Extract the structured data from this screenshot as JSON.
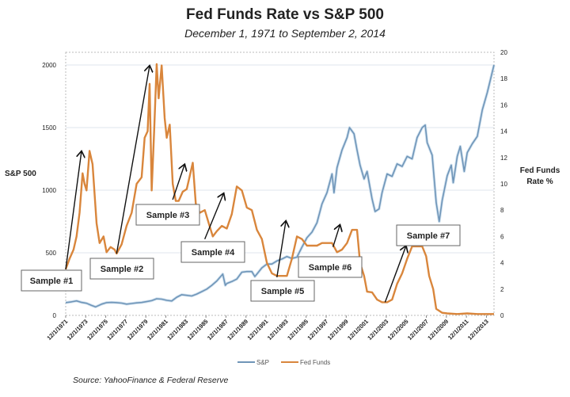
{
  "chart_data": {
    "type": "line",
    "title": "Fed Funds Rate vs S&P 500",
    "subtitle": "December 1, 1971 to September 2, 2014",
    "ylabel_left": "S&P 500",
    "ylabel_right": "Fed Funds\nRate %",
    "ylim_left": [
      0,
      2000
    ],
    "ylim_right": [
      0,
      20
    ],
    "yticks_left": [
      "0",
      "500",
      "1000",
      "1500",
      "2000"
    ],
    "yticks_right": [
      "0",
      "2",
      "4",
      "6",
      "8",
      "10",
      "12",
      "14",
      "16",
      "18",
      "20"
    ],
    "xlim": [
      1971.92,
      2014.67
    ],
    "xtick_labels": [
      "12/1/1971",
      "12/1/1973",
      "12/1/1975",
      "12/1/1977",
      "12/1/1979",
      "12/1/1981",
      "12/1/1983",
      "12/1/1985",
      "12/1/1987",
      "12/1/1989",
      "12/1/1991",
      "12/1/1993",
      "12/1/1995",
      "12/1/1997",
      "12/1/1999",
      "12/1/2001",
      "12/1/2003",
      "12/1/2005",
      "12/1/2007",
      "12/1/2009",
      "12/1/2011",
      "12/1/2013"
    ],
    "grid": true,
    "legend_position": "bottom",
    "series": [
      {
        "name": "S&P",
        "axis": "left",
        "color": "#6f95b8",
        "x": [
          1971.92,
          1972.5,
          1973.0,
          1973.5,
          1974.0,
          1974.5,
          1974.9,
          1975.5,
          1976.0,
          1976.5,
          1977.0,
          1977.5,
          1978.0,
          1978.5,
          1979.0,
          1979.5,
          1980.0,
          1980.5,
          1981.0,
          1981.5,
          1982.0,
          1982.5,
          1983.0,
          1983.5,
          1984.0,
          1984.5,
          1985.0,
          1985.5,
          1986.0,
          1986.5,
          1987.0,
          1987.6,
          1987.85,
          1988.0,
          1988.5,
          1989.0,
          1989.5,
          1990.0,
          1990.5,
          1990.8,
          1991.0,
          1991.5,
          1992.0,
          1992.5,
          1993.0,
          1993.5,
          1994.0,
          1994.5,
          1995.0,
          1995.5,
          1996.0,
          1996.5,
          1997.0,
          1997.5,
          1998.0,
          1998.5,
          1998.7,
          1999.0,
          1999.5,
          2000.0,
          2000.25,
          2000.7,
          2001.0,
          2001.3,
          2001.7,
          2002.0,
          2002.5,
          2002.8,
          2003.2,
          2003.5,
          2004.0,
          2004.5,
          2005.0,
          2005.5,
          2006.0,
          2006.5,
          2007.0,
          2007.5,
          2007.8,
          2008.0,
          2008.5,
          2008.9,
          2009.2,
          2009.5,
          2010.0,
          2010.4,
          2010.6,
          2011.0,
          2011.3,
          2011.7,
          2012.0,
          2012.5,
          2013.0,
          2013.5,
          2014.0,
          2014.67
        ],
        "values": [
          102,
          108,
          116,
          104,
          97,
          80,
          68,
          90,
          102,
          104,
          102,
          98,
          90,
          95,
          100,
          103,
          110,
          118,
          133,
          130,
          120,
          115,
          145,
          165,
          160,
          155,
          170,
          190,
          210,
          240,
          275,
          330,
          240,
          255,
          270,
          290,
          345,
          350,
          350,
          310,
          330,
          380,
          410,
          410,
          435,
          450,
          470,
          455,
          465,
          545,
          620,
          665,
          740,
          890,
          980,
          1130,
          980,
          1180,
          1320,
          1420,
          1500,
          1450,
          1320,
          1200,
          1090,
          1150,
          930,
          830,
          850,
          980,
          1130,
          1110,
          1210,
          1190,
          1270,
          1250,
          1420,
          1500,
          1520,
          1380,
          1280,
          900,
          750,
          920,
          1115,
          1200,
          1060,
          1270,
          1350,
          1150,
          1300,
          1370,
          1430,
          1640,
          1780,
          2000
        ]
      },
      {
        "name": "Fed Funds",
        "axis": "right",
        "color": "#d9863c",
        "x": [
          1971.92,
          1972.3,
          1972.7,
          1973.0,
          1973.3,
          1973.6,
          1973.8,
          1974.0,
          1974.3,
          1974.6,
          1975.0,
          1975.3,
          1975.7,
          1976.0,
          1976.4,
          1976.8,
          1977.0,
          1977.5,
          1978.0,
          1978.5,
          1979.0,
          1979.5,
          1979.8,
          1980.1,
          1980.3,
          1980.5,
          1980.75,
          1981.0,
          1981.2,
          1981.5,
          1981.8,
          1982.0,
          1982.3,
          1982.6,
          1982.9,
          1983.2,
          1983.6,
          1984.0,
          1984.3,
          1984.6,
          1984.9,
          1985.3,
          1985.8,
          1986.2,
          1986.6,
          1987.0,
          1987.5,
          1988.0,
          1988.5,
          1989.0,
          1989.5,
          1990.0,
          1990.5,
          1991.0,
          1991.5,
          1992.0,
          1992.5,
          1993.0,
          1993.5,
          1994.0,
          1994.5,
          1995.0,
          1995.5,
          1996.0,
          1996.5,
          1997.0,
          1997.5,
          1998.0,
          1998.5,
          1999.0,
          1999.5,
          2000.0,
          2000.5,
          2001.0,
          2001.3,
          2001.7,
          2002.0,
          2002.5,
          2003.0,
          2003.5,
          2004.0,
          2004.5,
          2005.0,
          2005.5,
          2006.0,
          2006.5,
          2007.0,
          2007.5,
          2007.9,
          2008.2,
          2008.6,
          2008.9,
          2009.5,
          2010.0,
          2011.0,
          2012.0,
          2013.0,
          2014.67
        ],
        "values": [
          3.5,
          4.3,
          5.0,
          6.0,
          7.8,
          10.8,
          10.0,
          9.5,
          12.5,
          11.5,
          7.0,
          5.5,
          6.0,
          4.8,
          5.2,
          5.0,
          4.7,
          5.4,
          6.8,
          7.8,
          10.0,
          10.5,
          13.5,
          14.0,
          17.6,
          9.5,
          14.0,
          19.1,
          16.5,
          19.0,
          15.0,
          13.5,
          14.5,
          10.0,
          8.7,
          8.7,
          9.4,
          9.6,
          10.6,
          11.6,
          8.5,
          7.8,
          8.0,
          7.0,
          6.0,
          6.4,
          6.8,
          6.6,
          7.7,
          9.8,
          9.5,
          8.2,
          8.0,
          6.5,
          5.8,
          4.0,
          3.2,
          3.0,
          3.0,
          3.0,
          4.3,
          6.0,
          5.8,
          5.3,
          5.3,
          5.3,
          5.5,
          5.5,
          5.5,
          4.8,
          5.0,
          5.5,
          6.5,
          6.5,
          4.0,
          3.0,
          1.8,
          1.75,
          1.2,
          1.0,
          1.0,
          1.2,
          2.4,
          3.2,
          4.3,
          5.25,
          5.25,
          5.25,
          4.5,
          3.0,
          2.0,
          0.5,
          0.2,
          0.15,
          0.1,
          0.15,
          0.1,
          0.1
        ]
      }
    ],
    "annotations": [
      {
        "label": "Sample #1",
        "from": [
          1971.92,
          3.5
        ],
        "to": [
          1973.5,
          12.5
        ],
        "axis": "right"
      },
      {
        "label": "Sample #2",
        "from": [
          1977.0,
          4.7
        ],
        "to": [
          1980.3,
          19.0
        ],
        "axis": "right"
      },
      {
        "label": "Sample #3",
        "from": [
          1982.6,
          8.8
        ],
        "to": [
          1983.8,
          11.5
        ],
        "axis": "right"
      },
      {
        "label": "Sample #4",
        "from": [
          1985.8,
          5.8
        ],
        "to": [
          1987.7,
          9.3
        ],
        "axis": "right"
      },
      {
        "label": "Sample #5",
        "from": [
          1993.0,
          2.9
        ],
        "to": [
          1993.9,
          7.2
        ],
        "axis": "right"
      },
      {
        "label": "Sample #6",
        "from": [
          1998.6,
          5.2
        ],
        "to": [
          1999.3,
          6.9
        ],
        "axis": "right"
      },
      {
        "label": "Sample #7",
        "from": [
          2003.8,
          1.0
        ],
        "to": [
          2005.9,
          5.3
        ],
        "axis": "right"
      }
    ]
  },
  "source": "Source: YahooFinance & Federal Reserve"
}
